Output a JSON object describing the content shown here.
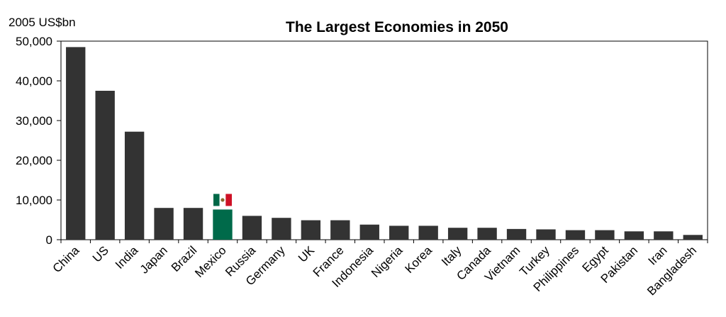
{
  "chart_data": {
    "type": "bar",
    "title": "The Largest Economies in 2050",
    "ylabel": "2005 US$bn",
    "xlabel": "",
    "ylim": [
      0,
      50000
    ],
    "yticks": [
      0,
      10000,
      20000,
      30000,
      40000,
      50000
    ],
    "ytick_labels": [
      "0",
      "10,000",
      "20,000",
      "30,000",
      "40,000",
      "50,000"
    ],
    "grid": false,
    "categories": [
      "China",
      "US",
      "India",
      "Japan",
      "Brazil",
      "Mexico",
      "Russia",
      "Germany",
      "UK",
      "France",
      "Indonesia",
      "Nigeria",
      "Korea",
      "Italy",
      "Canada",
      "Vietnam",
      "Turkey",
      "Philippines",
      "Egypt",
      "Pakistan",
      "Iran",
      "Bangladesh"
    ],
    "values": [
      48500,
      37500,
      27200,
      8000,
      8000,
      7600,
      6000,
      5500,
      4900,
      4900,
      3800,
      3500,
      3500,
      3000,
      3000,
      2700,
      2600,
      2400,
      2400,
      2100,
      2100,
      1200
    ],
    "highlight": "Mexico",
    "colors": {
      "bar": "#333333",
      "highlight_bar": "#006a4a",
      "flag_green": "#006847",
      "flag_white": "#ffffff",
      "flag_red": "#ce1126",
      "axis": "#000000"
    },
    "icons": [
      "mexico-flag-icon"
    ]
  }
}
